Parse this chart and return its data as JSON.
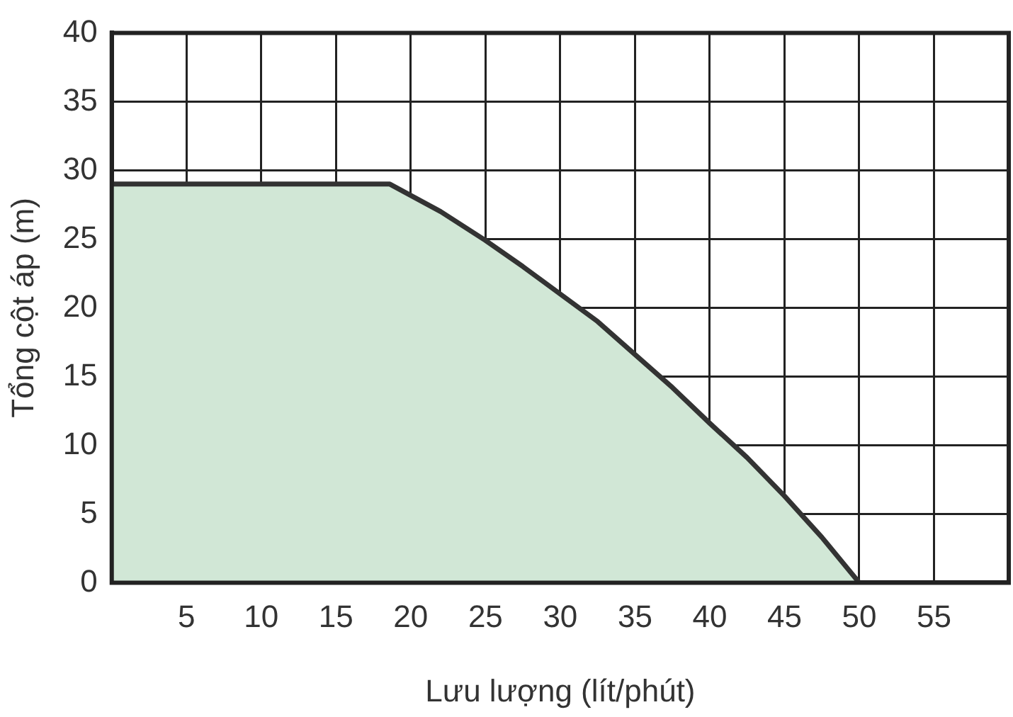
{
  "chart_data": {
    "type": "area",
    "xlabel": "Lưu lượng (lít/phút)",
    "ylabel": "Tổng cột áp (m)",
    "x": [
      0,
      18.6,
      22,
      25,
      27.5,
      30,
      32.5,
      35,
      37.5,
      40,
      42.5,
      45,
      47.5,
      50
    ],
    "series": [
      {
        "color": "#d1e7d6",
        "values": [
          29,
          29,
          27,
          24.9,
          23,
          21,
          19,
          16.6,
          14.2,
          11.6,
          9.1,
          6.3,
          3.3,
          0
        ]
      }
    ],
    "xlim": [
      0,
      60
    ],
    "xticks": [
      5,
      10,
      15,
      20,
      25,
      30,
      35,
      40,
      45,
      50,
      55
    ],
    "ylim": [
      0,
      40
    ],
    "yticks": [
      0,
      5,
      10,
      15,
      20,
      25,
      30,
      35,
      40
    ],
    "grid": true,
    "legend": false
  }
}
